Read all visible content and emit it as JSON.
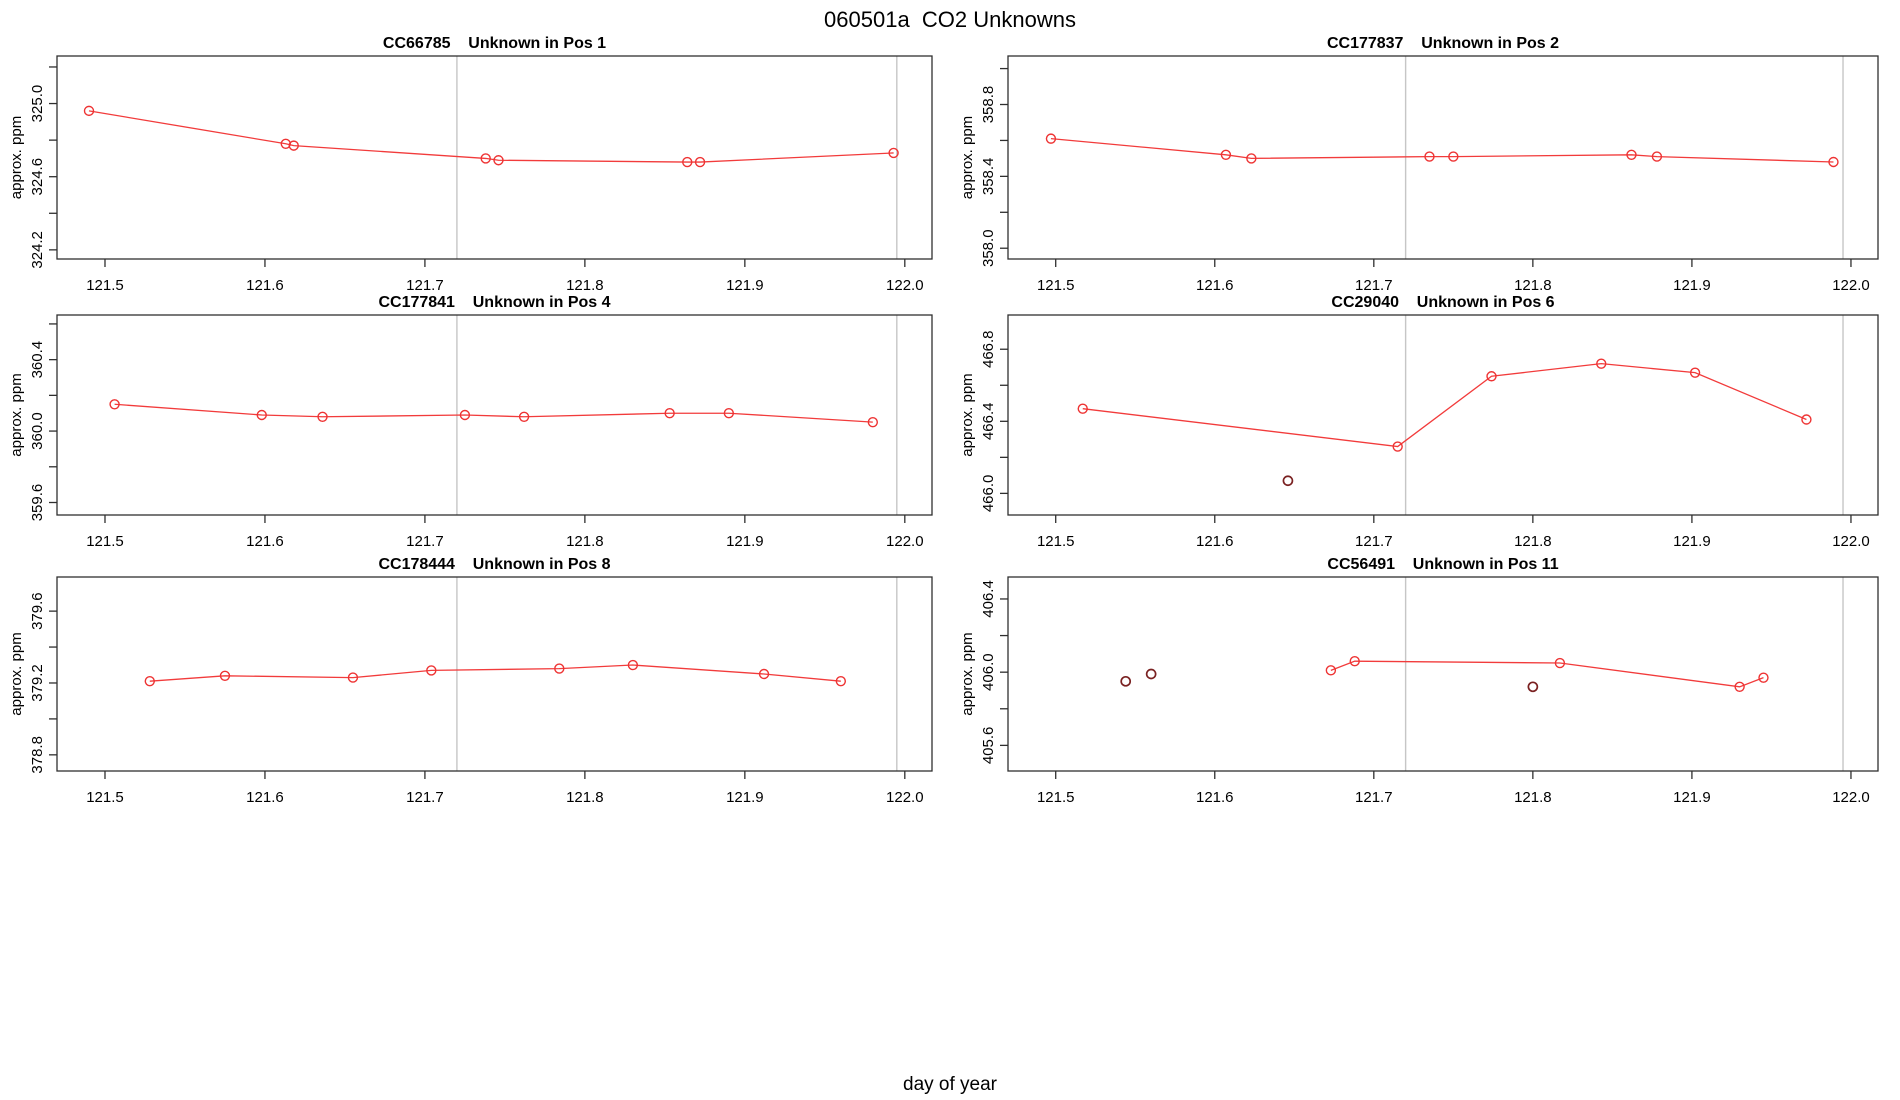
{
  "title": "060501a  CO2 Unknowns",
  "xlabel": "day of year",
  "colors": {
    "series_line": "#f23b3b",
    "data_point": "#ee3333",
    "flagged_point": "#7a2121",
    "reference_line": "#c6c6c6",
    "axis": "#2f2f2f"
  },
  "chart_data": {
    "type": "line",
    "title": "060501a  CO2 Unknowns",
    "xlabel": "day of year",
    "ylabel": "approx. ppm",
    "grid": false,
    "x": {
      "lim": [
        121.47,
        122.017
      ],
      "ticks": [
        121.5,
        121.6,
        121.7,
        121.8,
        121.9,
        122.0
      ],
      "tick_labels": [
        "121.5",
        "121.6",
        "121.7",
        "121.8",
        "121.9",
        "122.0"
      ]
    },
    "vlines": [
      121.72,
      121.995
    ],
    "panels": [
      {
        "id": "CC66785",
        "subtitle": "Unknown in Pos 1",
        "ylabel": "approx. ppm",
        "ylim": [
          324.15,
          325.26
        ],
        "yticks": [
          324.2,
          324.4,
          324.6,
          324.8,
          325.0,
          325.2
        ],
        "ytick_labeled": [
          324.2,
          324.6,
          325.0
        ],
        "ytick_labels": [
          "324.2",
          "324.6",
          "325.0"
        ],
        "line": [
          [
            121.49,
            324.96
          ],
          [
            121.613,
            324.78
          ],
          [
            121.618,
            324.77
          ],
          [
            121.738,
            324.7
          ],
          [
            121.746,
            324.69
          ],
          [
            121.864,
            324.68
          ],
          [
            121.872,
            324.68
          ],
          [
            121.993,
            324.73
          ]
        ],
        "extra": []
      },
      {
        "id": "CC177837",
        "subtitle": "Unknown in Pos 2",
        "ylabel": "approx. ppm",
        "ylim": [
          357.94,
          359.07
        ],
        "yticks": [
          358.0,
          358.2,
          358.4,
          358.6,
          358.8,
          359.0
        ],
        "ytick_labeled": [
          358.0,
          358.4,
          358.8
        ],
        "ytick_labels": [
          "358.0",
          "358.4",
          "358.8"
        ],
        "line": [
          [
            121.497,
            358.61
          ],
          [
            121.607,
            358.52
          ],
          [
            121.623,
            358.5
          ],
          [
            121.735,
            358.51
          ],
          [
            121.75,
            358.51
          ],
          [
            121.862,
            358.52
          ],
          [
            121.878,
            358.51
          ],
          [
            121.989,
            358.48
          ]
        ],
        "extra": []
      },
      {
        "id": "CC177841",
        "subtitle": "Unknown in Pos 4",
        "ylabel": "approx. ppm",
        "ylim": [
          359.53,
          360.65
        ],
        "yticks": [
          359.6,
          359.8,
          360.0,
          360.2,
          360.4,
          360.6
        ],
        "ytick_labeled": [
          359.6,
          360.0,
          360.4
        ],
        "ytick_labels": [
          "359.6",
          "360.0",
          "360.4"
        ],
        "line": [
          [
            121.506,
            360.15
          ],
          [
            121.598,
            360.09
          ],
          [
            121.636,
            360.08
          ],
          [
            121.725,
            360.09
          ],
          [
            121.762,
            360.08
          ],
          [
            121.853,
            360.1
          ],
          [
            121.89,
            360.1
          ],
          [
            121.98,
            360.05
          ]
        ],
        "extra": []
      },
      {
        "id": "CC29040",
        "subtitle": "Unknown in Pos 6",
        "ylabel": "approx. ppm",
        "ylim": [
          465.88,
          466.99
        ],
        "yticks": [
          466.0,
          466.2,
          466.4,
          466.6,
          466.8
        ],
        "ytick_labeled": [
          466.0,
          466.4,
          466.8
        ],
        "ytick_labels": [
          "466.0",
          "466.4",
          "466.8"
        ],
        "line": [
          [
            121.517,
            466.47
          ],
          [
            121.715,
            466.26
          ],
          [
            121.774,
            466.65
          ],
          [
            121.843,
            466.72
          ],
          [
            121.902,
            466.67
          ],
          [
            121.972,
            466.41
          ]
        ],
        "extra": [
          [
            121.646,
            466.07
          ]
        ]
      },
      {
        "id": "CC178444",
        "subtitle": "Unknown in Pos 8",
        "ylabel": "approx. ppm",
        "ylim": [
          378.71,
          379.79
        ],
        "yticks": [
          378.8,
          379.0,
          379.2,
          379.4,
          379.6
        ],
        "ytick_labeled": [
          378.8,
          379.2,
          379.6
        ],
        "ytick_labels": [
          "378.8",
          "379.2",
          "379.6"
        ],
        "line": [
          [
            121.528,
            379.21
          ],
          [
            121.575,
            379.24
          ],
          [
            121.655,
            379.23
          ],
          [
            121.704,
            379.27
          ],
          [
            121.784,
            379.28
          ],
          [
            121.83,
            379.3
          ],
          [
            121.912,
            379.25
          ],
          [
            121.96,
            379.21
          ]
        ],
        "extra": []
      },
      {
        "id": "CC56491",
        "subtitle": "Unknown in Pos 11",
        "ylabel": "approx. ppm",
        "ylim": [
          405.46,
          406.52
        ],
        "yticks": [
          405.6,
          405.8,
          406.0,
          406.2,
          406.4
        ],
        "ytick_labeled": [
          405.6,
          406.0,
          406.4
        ],
        "ytick_labels": [
          "405.6",
          "406.0",
          "406.4"
        ],
        "line": [
          [
            121.673,
            406.01
          ],
          [
            121.688,
            406.06
          ],
          [
            121.817,
            406.05
          ],
          [
            121.93,
            405.92
          ],
          [
            121.945,
            405.97
          ]
        ],
        "extra": [
          [
            121.544,
            405.95
          ],
          [
            121.56,
            405.99
          ],
          [
            121.8,
            405.92
          ]
        ]
      }
    ]
  }
}
